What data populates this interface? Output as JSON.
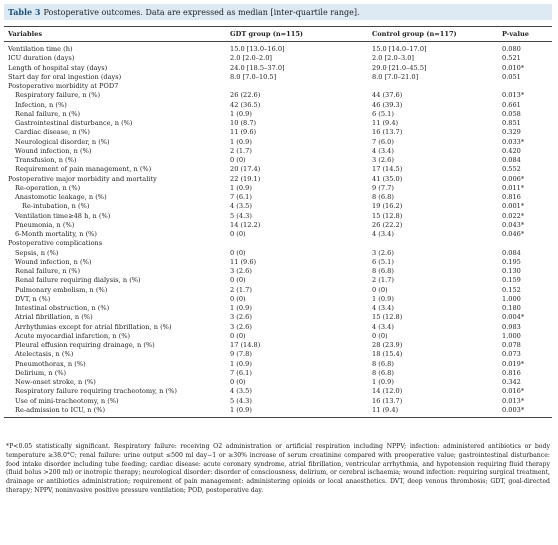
{
  "header": {
    "label": "Table 3",
    "caption": "Postoperative outcomes. Data are expressed as median [inter-quartile range]."
  },
  "table": {
    "columns": [
      "Variables",
      "GDT group (n=115)",
      "Control group (n=117)",
      "P-value"
    ],
    "rows": [
      [
        "Ventilation time (h)",
        "15.0 [13.0–16.0]",
        "15.0 [14.0–17.0]",
        "0.080"
      ],
      [
        "ICU duration (days)",
        "2.0 [2.0–2.0]",
        "2.0 [2.0–3.0]",
        "0.521"
      ],
      [
        "Length of hospital stay (days)",
        "24.0 [18.5–37.0]",
        "29.0 [21.0–45.5]",
        "0.010*"
      ],
      [
        "Start day for oral ingestion (days)",
        "8.0 [7.0–10.5]",
        "8.0 [7.0–21.0]",
        "0.051"
      ],
      [
        "Postoperative morbidity at POD7"
      ],
      [
        "Respiratory failure, n (%)",
        "26 (22.6)",
        "44 (37.6)",
        "0.013*"
      ],
      [
        "Infection, n (%)",
        "42 (36.5)",
        "46 (39.3)",
        "0.661"
      ],
      [
        "Renal failure, n (%)",
        "1 (0.9)",
        "6 (5.1)",
        "0.058"
      ],
      [
        "Gastrointestinal disturbance, n (%)",
        "10 (8.7)",
        "11 (9.4)",
        "0.851"
      ],
      [
        "Cardiac disease, n (%)",
        "11 (9.6)",
        "16 (13.7)",
        "0.329"
      ],
      [
        "Neurological disorder, n (%)",
        "1 (0.9)",
        "7 (6.0)",
        "0.033*"
      ],
      [
        "Wound infection, n (%)",
        "2 (1.7)",
        "4 (3.4)",
        "0.420"
      ],
      [
        "Transfusion, n (%)",
        "0 (0)",
        "3 (2.6)",
        "0.084"
      ],
      [
        "Requirement of pain management, n (%)",
        "20 (17.4)",
        "17 (14.5)",
        "0.552"
      ],
      [
        "Postoperative major morbidity and mortality",
        "22 (19.1)",
        "41 (35.0)",
        "0.006*"
      ],
      [
        "Re-operation, n (%)",
        "1 (0.9)",
        "9 (7.7)",
        "0.011*"
      ],
      [
        "Anastomotic leakage, n (%)",
        "7 (6.1)",
        "8 (6.8)",
        "0.816"
      ],
      [
        "Re-intubation, n (%)",
        "4 (3.5)",
        "19 (16.2)",
        "0.001*"
      ],
      [
        "Ventilation time≥48 h, n (%)",
        "5 (4.3)",
        "15 (12.8)",
        "0.022*"
      ],
      [
        "Pneumonia, n (%)",
        "14 (12.2)",
        "26 (22.2)",
        "0.043*"
      ],
      [
        "6-Month mortality, n (%)",
        "0 (0)",
        "4 (3.4)",
        "0.046*"
      ],
      [
        "Postoperative complications"
      ],
      [
        "Sepsis, n (%)",
        "0 (0)",
        "3 (2.6)",
        "0.084"
      ],
      [
        "Wound infection, n (%)",
        "11 (9.6)",
        "6 (5.1)",
        "0.195"
      ],
      [
        "Renal failure, n (%)",
        "3 (2.6)",
        "8 (6.8)",
        "0.130"
      ],
      [
        "Renal failure requiring dialysis, n (%)",
        "0 (0)",
        "2 (1.7)",
        "0.159"
      ],
      [
        "Pulmonary embolism, n (%)",
        "2 (1.7)",
        "0 (0)",
        "0.152"
      ],
      [
        "DVT, n (%)",
        "0 (0)",
        "1 (0.9)",
        "1.000"
      ],
      [
        "Intestinal obstruction, n (%)",
        "1 (0.9)",
        "4 (3.4)",
        "0.180"
      ],
      [
        "Atrial fibrillation, n (%)",
        "3 (2.6)",
        "15 (12.8)",
        "0.004*"
      ],
      [
        "Arrhythmias except for atrial fibrillation, n (%)",
        "3 (2.6)",
        "4 (3.4)",
        "0.983"
      ],
      [
        "Acute myocardial infarction, n (%)",
        "0 (0)",
        "0 (0)",
        "1.000"
      ],
      [
        "Pleural effusion requiring drainage, n (%)",
        "17 (14.8)",
        "28 (23.9)",
        "0.078"
      ],
      [
        "Atelectasis, n (%)",
        "9 (7.8)",
        "18 (15.4)",
        "0.073"
      ],
      [
        "Pneumothorax, n (%)",
        "1 (0.9)",
        "8 (6.8)",
        "0.019*"
      ],
      [
        "Delirium, n (%)",
        "7 (6.1)",
        "8 (6.8)",
        "0.816"
      ],
      [
        "New-onset stroke, n (%)",
        "0 (0)",
        "1 (0.9)",
        "0.342"
      ],
      [
        "Respiratory failure requiring tracheotomy, n (%)",
        "4 (3.5)",
        "14 (12.0)",
        "0.016*"
      ],
      [
        "Use of mini-tracheotomy, n (%)",
        "5 (4.3)",
        "16 (13.7)",
        "0.013*"
      ],
      [
        "Re-admission to ICU, n (%)",
        "1 (0.9)",
        "11 (9.4)",
        "0.003*"
      ]
    ]
  },
  "footnote": "*P<0.05 statistically significant. Respiratory failure: receiving O2 administration or artificial respiration including NPPV; infection: administered antibiotics or body temperature ≥38.0°C; renal failure: urine output ≤500 ml day−1 or ≥30% increase of serum creatinine compared with preoperative value; gastrointestinal disturbance: food intake disorder including tube feeding; cardiac disease: acute coronary syndrome, atrial fibrillation, ventricular arrhythmia, and hypotension requiring fluid therapy (fluid bolus >200 ml) or inotropic therapy; neurological disorder: disorder of consciousness, delirium, or cerebral ischaemia; wound infection: requiring surgical treatment, drainage or antibiotics administration; requirement of pain management: administering opioids or local anaesthetics. DVT, deep venous thrombosis; GDT, goal-directed therapy; NPPV, noninvasive positive pressure ventilation; POD, postoperative day."
}
